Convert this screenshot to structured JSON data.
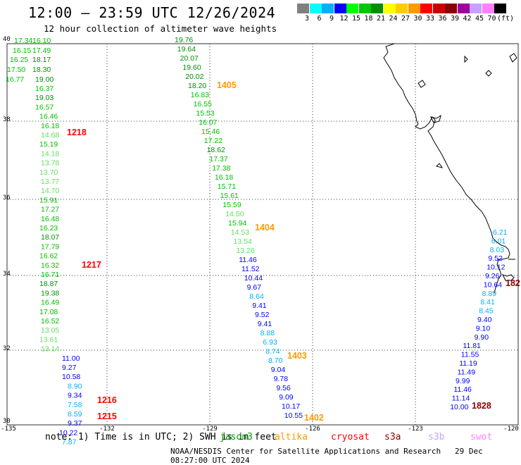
{
  "header": {
    "title": "12:00 — 23:59 UTC 12/26/2024",
    "subtitle": "12 hour collection of altimeter wave heights"
  },
  "legend": {
    "unit_label": "(ft)",
    "colors": [
      "#808080",
      "#00ffff",
      "#00b0ff",
      "#0000ff",
      "#00ff00",
      "#00c800",
      "#009000",
      "#ffff00",
      "#ffcc00",
      "#ff9900",
      "#ff0000",
      "#cc0000",
      "#8b0000",
      "#a000a0",
      "#c8a0ff",
      "#ff80ff",
      "#000000"
    ],
    "ticks": [
      "3",
      "6",
      "9",
      "12",
      "15",
      "18",
      "21",
      "24",
      "27",
      "30",
      "33",
      "36",
      "39",
      "42",
      "45",
      "70"
    ]
  },
  "axes": {
    "x_ticks": [
      "-135",
      "-132",
      "-129",
      "-126",
      "-123",
      "-120"
    ],
    "y_ticks": [
      "40",
      "38",
      "36",
      "34",
      "32",
      "30"
    ]
  },
  "passes": [
    {
      "label": "1405",
      "color": "#ff9900",
      "lx": 308,
      "ly": 125
    },
    {
      "label": "1218",
      "color": "#ff0000",
      "lx": 95,
      "ly": 192
    },
    {
      "label": "1404",
      "color": "#ff9900",
      "lx": 362,
      "ly": 327
    },
    {
      "label": "1217",
      "color": "#ff0000",
      "lx": 116,
      "ly": 380
    },
    {
      "label": "1403",
      "color": "#ff9900",
      "lx": 408,
      "ly": 509
    },
    {
      "label": "1216",
      "color": "#ff0000",
      "lx": 138,
      "ly": 572
    },
    {
      "label": "1215",
      "color": "#ff0000",
      "lx": 138,
      "ly": 595
    },
    {
      "label": "1402",
      "color": "#ff9900",
      "lx": 432,
      "ly": 597
    },
    {
      "label": "1828",
      "color": "#8b0000",
      "lx": 670,
      "ly": 580
    },
    {
      "label": "182",
      "color": "#8b0000",
      "lx": 718,
      "ly": 406
    }
  ],
  "tracks": [
    {
      "name": "track-a",
      "values": [
        "17.34",
        "16.10",
        "16.15",
        "17.49",
        "16.25",
        "18.17",
        "17.50",
        "18.30",
        "16.77",
        "19.00"
      ]
    },
    {
      "name": "track-b",
      "values": [
        "16.37",
        "19.03",
        "16.57",
        "16.46",
        "16.18",
        "14.68",
        "15.19",
        "14.18",
        "13.78",
        "13.70",
        "13.77",
        "14.70",
        "15.91",
        "17.27",
        "16.48",
        "16.23",
        "18.07",
        "17.79",
        "16.62",
        "16.32",
        "16.71",
        "18.87",
        "19.38",
        "16.49",
        "17.08",
        "16.52",
        "13.05",
        "13.61",
        "13.14",
        "11.00",
        "9.27",
        "10.58",
        "8.90",
        "9.34",
        "7.58",
        "8.59",
        "9.37",
        "10.22",
        "7.87"
      ]
    },
    {
      "name": "track-c",
      "values": [
        "19.76",
        "19.64",
        "20.07",
        "19.60",
        "20.02",
        "18.20",
        "16.83",
        "16.55",
        "15.53",
        "16.07",
        "15.46",
        "17.22",
        "18.62",
        "17.37",
        "17.38",
        "16.18",
        "15.71",
        "15.61",
        "15.59",
        "14.50",
        "15.94",
        "14.53",
        "13.54",
        "13.26",
        "11.46",
        "11.52",
        "10.44",
        "9.67",
        "8.64",
        "9.41",
        "9.52",
        "9.41",
        "8.88",
        "6.93",
        "8.74",
        "8.70",
        "9.04",
        "9.78",
        "9.56",
        "9.09",
        "10.17",
        "10.55"
      ]
    },
    {
      "name": "track-d",
      "values": [
        "6.21",
        "6.01",
        "8.03",
        "9.52",
        "10.12",
        "9.26",
        "10.64",
        "8.89",
        "8.41",
        "8.45",
        "9.40",
        "9.10",
        "9.90",
        "11.81",
        "11.55",
        "11.19",
        "11.49",
        "9.99",
        "11.46",
        "11.14",
        "10.00"
      ]
    }
  ],
  "note": {
    "text": "note:  1) Time is in UTC;  2) SWH is in feet",
    "satellites": [
      {
        "name": "jason3",
        "color": "#00a000"
      },
      {
        "name": "altika",
        "color": "#ff9900"
      },
      {
        "name": "cryosat",
        "color": "#ff0000"
      },
      {
        "name": "s3a",
        "color": "#8b0000"
      },
      {
        "name": "s3b",
        "color": "#c8a0ff"
      },
      {
        "name": "swot",
        "color": "#ff80ff"
      }
    ]
  },
  "footer": {
    "credit": "NOAA/NESDIS Center for Satellite Applications and Research",
    "timestamp": "29 Dec 08:27:00 UTC 2024"
  }
}
